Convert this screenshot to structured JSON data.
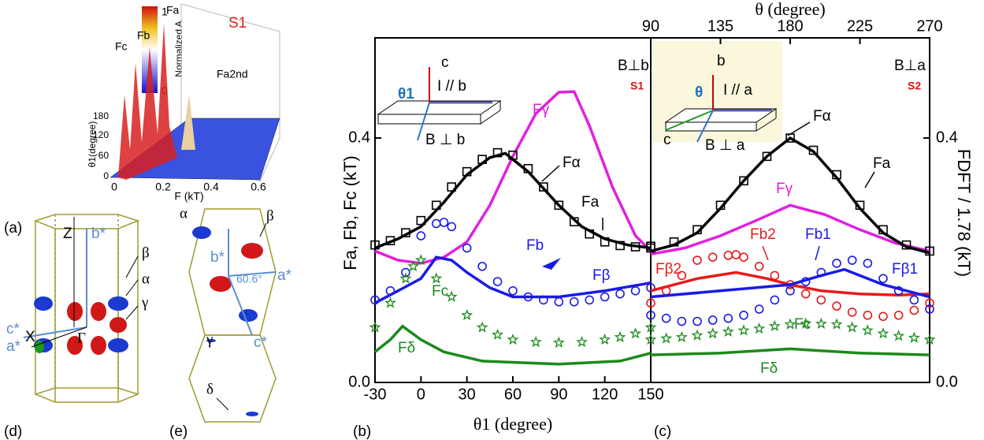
{
  "chart_data": [
    {
      "type": "line",
      "x_label": "θ1 (degree)",
      "y_label": "Fa, Fb, Fc (kT)",
      "x_axis_side": "bottom",
      "y_axis_side": "left",
      "xlim": [
        -30,
        150
      ],
      "xticks": [
        -30,
        0,
        30,
        60,
        90,
        120,
        150
      ],
      "ylim": [
        0,
        0.564
      ],
      "yticks": [
        {
          "value": 0,
          "label": "0.0"
        },
        0.4
      ],
      "series": [
        {
          "color": "#e020e0",
          "marker": "none",
          "x": [
            -30,
            -15,
            0,
            15,
            30,
            45,
            60,
            75,
            90,
            100,
            110,
            125,
            140,
            150
          ],
          "values": [
            0.215,
            0.2,
            0.195,
            0.205,
            0.23,
            0.29,
            0.37,
            0.44,
            0.475,
            0.476,
            0.42,
            0.32,
            0.24,
            0.215
          ]
        },
        {
          "color": "#000000",
          "marker": "none",
          "x": [
            -30,
            -15,
            0,
            15,
            30,
            45,
            55,
            70,
            90,
            105,
            120,
            135,
            150
          ],
          "values": [
            0.22,
            0.235,
            0.255,
            0.295,
            0.34,
            0.368,
            0.375,
            0.345,
            0.29,
            0.255,
            0.235,
            0.225,
            0.22
          ]
        },
        {
          "color": "#000000",
          "marker": "square",
          "x": [
            -30,
            -20,
            -10,
            0,
            10,
            20,
            30,
            40,
            50,
            60,
            70,
            80,
            90,
            100,
            110,
            120,
            130,
            140,
            150
          ],
          "values": [
            0.225,
            0.232,
            0.245,
            0.265,
            0.29,
            0.32,
            0.345,
            0.365,
            0.376,
            0.372,
            0.35,
            0.32,
            0.29,
            0.263,
            0.243,
            0.23,
            0.224,
            0.222,
            0.223
          ]
        },
        {
          "color": "#1a1ae6",
          "marker": "none",
          "x": [
            -30,
            -15,
            0,
            10,
            20,
            30,
            45,
            60,
            90,
            120,
            150
          ],
          "values": [
            0.13,
            0.15,
            0.17,
            0.205,
            0.2,
            0.18,
            0.155,
            0.14,
            0.14,
            0.15,
            0.163
          ]
        },
        {
          "color": "#1a1ae6",
          "marker": "circle",
          "x": [
            -30,
            -20,
            -10,
            0,
            10,
            15,
            20,
            30,
            40,
            50,
            60,
            70,
            80,
            90,
            100,
            110,
            120,
            130,
            140,
            150
          ],
          "values": [
            0.135,
            0.15,
            0.18,
            0.24,
            0.26,
            0.262,
            0.255,
            0.22,
            0.19,
            0.165,
            0.15,
            0.14,
            0.135,
            0.132,
            0.132,
            0.135,
            0.14,
            0.145,
            0.15,
            0.155
          ]
        },
        {
          "color": "#1b8a1b",
          "marker": "star",
          "x": [
            -30,
            -20,
            -10,
            -5,
            0,
            10,
            20,
            30,
            40,
            50,
            60,
            75,
            90,
            105,
            120,
            130,
            140,
            150
          ],
          "values": [
            0.09,
            0.13,
            0.17,
            0.19,
            0.2,
            0.17,
            0.14,
            0.11,
            0.09,
            0.078,
            0.07,
            0.066,
            0.065,
            0.066,
            0.07,
            0.074,
            0.08,
            0.09
          ]
        },
        {
          "color": "#1b8a1b",
          "marker": "none",
          "x": [
            -30,
            -20,
            -12,
            0,
            15,
            40,
            90,
            130,
            150
          ],
          "values": [
            0.05,
            0.07,
            0.092,
            0.07,
            0.05,
            0.035,
            0.03,
            0.035,
            0.048
          ]
        }
      ],
      "annotations": [
        "Fγ",
        "Fα",
        "Fa",
        "Fb",
        "Fβ",
        "Fc",
        "Fδ"
      ],
      "inset": [
        "c",
        "θ1",
        "I // b",
        "B ⊥ b",
        "B⊥b",
        "S1"
      ]
    },
    {
      "type": "line",
      "x_label": "θ (degree)",
      "y_label": "FDFT / 1.78 (kT)",
      "x_axis_side": "top",
      "y_axis_side": "right",
      "xlim": [
        90,
        270
      ],
      "xticks": [
        90,
        135,
        180,
        225,
        270
      ],
      "ylim": [
        0,
        0.564
      ],
      "yticks": [
        {
          "value": 0,
          "label": "0.0"
        },
        0.4
      ],
      "series": [
        {
          "color": "#e020e0",
          "marker": "none",
          "x": [
            90,
            112,
            135,
            158,
            180,
            202,
            225,
            248,
            270
          ],
          "values": [
            0.21,
            0.22,
            0.24,
            0.265,
            0.29,
            0.275,
            0.25,
            0.228,
            0.215
          ]
        },
        {
          "color": "#000000",
          "marker": "none",
          "x": [
            90,
            105,
            120,
            135,
            150,
            165,
            180,
            195,
            210,
            225,
            240,
            255,
            270
          ],
          "values": [
            0.215,
            0.225,
            0.245,
            0.285,
            0.33,
            0.37,
            0.4,
            0.378,
            0.335,
            0.285,
            0.245,
            0.222,
            0.212
          ]
        },
        {
          "color": "#000000",
          "marker": "square",
          "x": [
            90,
            105,
            120,
            135,
            150,
            165,
            180,
            195,
            210,
            225,
            240,
            255,
            270
          ],
          "values": [
            0.22,
            0.23,
            0.25,
            0.29,
            0.33,
            0.37,
            0.4,
            0.38,
            0.34,
            0.29,
            0.25,
            0.225,
            0.215
          ]
        },
        {
          "color": "#e61a1a",
          "marker": "none",
          "x": [
            90,
            120,
            145,
            165,
            180,
            200,
            225,
            250,
            270
          ],
          "values": [
            0.15,
            0.17,
            0.18,
            0.17,
            0.16,
            0.15,
            0.145,
            0.143,
            0.145
          ]
        },
        {
          "color": "#e61a1a",
          "marker": "circle",
          "x": [
            90,
            100,
            110,
            120,
            130,
            140,
            145,
            150,
            160,
            170,
            180,
            190,
            200,
            210,
            220,
            230,
            240,
            250,
            260,
            270
          ],
          "values": [
            0.13,
            0.15,
            0.175,
            0.2,
            0.205,
            0.208,
            0.209,
            0.205,
            0.19,
            0.175,
            0.16,
            0.145,
            0.135,
            0.125,
            0.115,
            0.11,
            0.108,
            0.11,
            0.118,
            0.13
          ]
        },
        {
          "color": "#1a1ae6",
          "marker": "none",
          "x": [
            90,
            135,
            180,
            200,
            215,
            240,
            270
          ],
          "values": [
            0.14,
            0.15,
            0.16,
            0.175,
            0.185,
            0.16,
            0.14
          ]
        },
        {
          "color": "#1a1ae6",
          "marker": "circle",
          "x": [
            90,
            100,
            110,
            120,
            130,
            140,
            150,
            160,
            170,
            180,
            190,
            200,
            210,
            220,
            230,
            240,
            250,
            260,
            270
          ],
          "values": [
            0.11,
            0.105,
            0.1,
            0.1,
            0.102,
            0.105,
            0.11,
            0.12,
            0.135,
            0.15,
            0.165,
            0.18,
            0.195,
            0.2,
            0.195,
            0.17,
            0.15,
            0.135,
            0.12
          ]
        },
        {
          "color": "#1b8a1b",
          "marker": "star",
          "x": [
            90,
            100,
            110,
            120,
            130,
            140,
            150,
            160,
            170,
            180,
            190,
            200,
            210,
            220,
            230,
            240,
            250,
            260,
            270
          ],
          "values": [
            0.07,
            0.072,
            0.074,
            0.077,
            0.08,
            0.083,
            0.085,
            0.088,
            0.092,
            0.095,
            0.096,
            0.096,
            0.095,
            0.09,
            0.085,
            0.08,
            0.076,
            0.073,
            0.07
          ]
        },
        {
          "color": "#1b8a1b",
          "marker": "none",
          "x": [
            90,
            135,
            180,
            225,
            270
          ],
          "values": [
            0.045,
            0.048,
            0.055,
            0.048,
            0.045
          ]
        }
      ],
      "annotations": [
        "Fα",
        "Fa",
        "Fγ",
        "Fb2",
        "Fb1",
        "Fβ2",
        "Fβ1",
        "Fc",
        "Fδ"
      ],
      "inset": [
        "b",
        "θ",
        "I // a",
        "c",
        "B ⊥ a",
        "B⊥a",
        "S2"
      ]
    }
  ],
  "panels": {
    "labels": [
      "(a)",
      "(b)",
      "(c)",
      "(d)",
      "(e)"
    ],
    "a": {
      "sample": "S1",
      "colorbar_label": "Normalized A",
      "colorbar_ticks": [
        "1",
        "0"
      ],
      "peaks": [
        "Fc",
        "Fb",
        "Fa",
        "Fa2nd"
      ],
      "y_label": "θ1(degree)",
      "y_ticks": [
        "180",
        "120",
        "60",
        "0"
      ],
      "x_label": "F (kT)",
      "x_ticks": [
        "0",
        "0.2",
        "0.4",
        "0.6"
      ]
    },
    "d": [
      "Z",
      "b*",
      "β",
      "α",
      "γ",
      "c*",
      "a*",
      "X",
      "Γ"
    ],
    "e": [
      "α",
      "β",
      "b*",
      "a*",
      "60.6°",
      "c*",
      "γ",
      "δ"
    ]
  }
}
